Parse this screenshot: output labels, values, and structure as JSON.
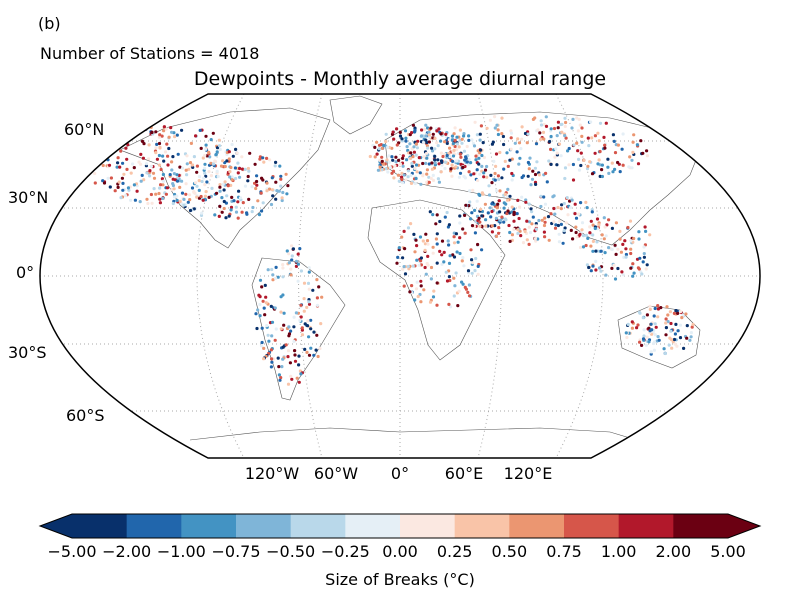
{
  "panel_label": "(b)",
  "station_count_text": "Number of Stations = 4018",
  "title": "Dewpoints - Monthly average diurnal range",
  "lat_labels": [
    "60°N",
    "30°N",
    "0°",
    "30°S",
    "60°S"
  ],
  "lon_labels": [
    "120°W",
    "60°W",
    "0°",
    "60°E",
    "120°E"
  ],
  "colorbar": {
    "title": "Size of Breaks (°C)",
    "ticks": [
      "−5.00",
      "−2.00",
      "−1.00",
      "−0.75",
      "−0.50",
      "−0.25",
      "0.00",
      "0.25",
      "0.50",
      "0.75",
      "1.00",
      "2.00",
      "5.00"
    ],
    "colors": [
      "#08306b",
      "#2166ac",
      "#4393c3",
      "#7fb5d8",
      "#b9d8ea",
      "#e5eff6",
      "#fbe8e1",
      "#f9c4a8",
      "#eb9671",
      "#d6564a",
      "#b2182b",
      "#6b0012"
    ]
  },
  "projection": "Robinson",
  "gridlines": "dotted",
  "colors": {
    "land_outline": "#555555",
    "gridline": "#aaaaaa",
    "frame": "#000000"
  }
}
